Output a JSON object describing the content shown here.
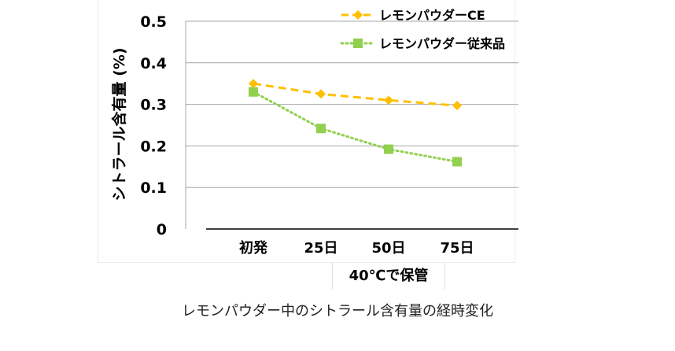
{
  "chart_data": {
    "type": "line",
    "categories": [
      "初発",
      "25日",
      "50日",
      "75日"
    ],
    "series": [
      {
        "name": "レモンパウダーCE",
        "values": [
          0.35,
          0.325,
          0.31,
          0.297
        ],
        "color": "#FFC000",
        "line": "dashed",
        "marker": "diamond"
      },
      {
        "name": "レモンパウダー従来品",
        "values": [
          0.33,
          0.242,
          0.192,
          0.162
        ],
        "color": "#92D050",
        "line": "dotted",
        "marker": "square"
      }
    ],
    "yticks": [
      "0",
      "0.1",
      "0.2",
      "0.3",
      "0.4",
      "0.5"
    ],
    "ylim": [
      0,
      0.5
    ],
    "ylabel": "シトラール含有量 (%)",
    "xlabel": "40℃で保管",
    "caption": "レモンパウダー中のシトラール含有量の経時変化",
    "grid": true,
    "legend_position": "top-right"
  }
}
